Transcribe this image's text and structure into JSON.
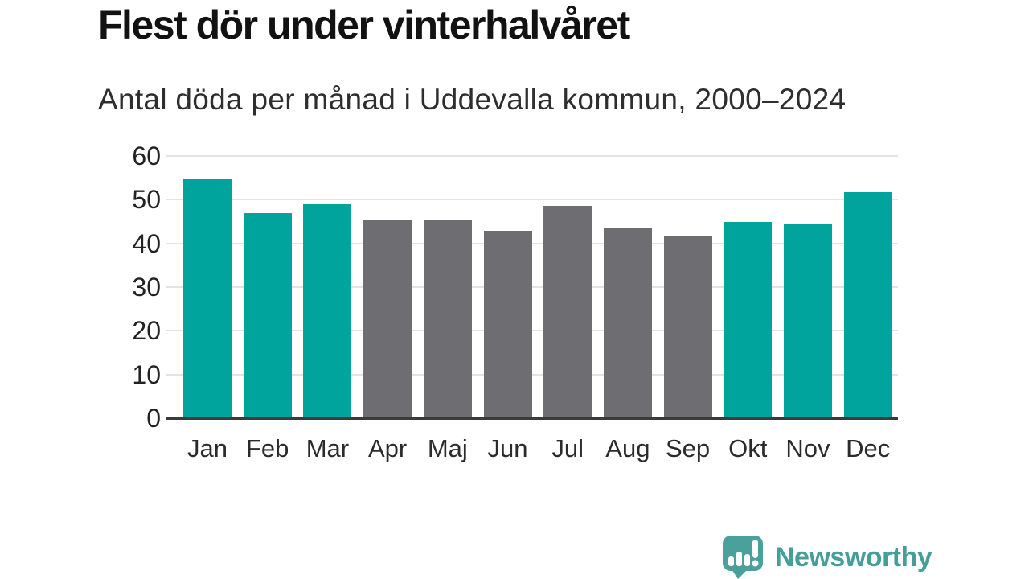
{
  "header": {
    "title": "Flest dör under vinterhalvåret",
    "subtitle": "Antal döda per månad i Uddevalla kommun, 2000–2024"
  },
  "chart_data": {
    "type": "bar",
    "title": "Flest dör under vinterhalvåret",
    "subtitle": "Antal döda per månad i Uddevalla kommun, 2000–2024",
    "categories": [
      "Jan",
      "Feb",
      "Mar",
      "Apr",
      "Maj",
      "Jun",
      "Jul",
      "Aug",
      "Sep",
      "Okt",
      "Nov",
      "Dec"
    ],
    "values": [
      54.7,
      46.9,
      48.9,
      45.5,
      45.3,
      42.9,
      48.6,
      43.6,
      41.6,
      44.9,
      44.3,
      51.8
    ],
    "bar_colors": [
      "#00a49c",
      "#00a49c",
      "#00a49c",
      "#6e6e72",
      "#6e6e72",
      "#6e6e72",
      "#6e6e72",
      "#6e6e72",
      "#6e6e72",
      "#00a49c",
      "#00a49c",
      "#00a49c"
    ],
    "highlight_color": "#00a49c",
    "default_color": "#6e6e72",
    "xlabel": "",
    "ylabel": "",
    "ylim": [
      0,
      60
    ],
    "yticks": [
      0,
      10,
      20,
      30,
      40,
      50,
      60
    ],
    "grid": true,
    "legend": false
  },
  "footer": {
    "brand": "Newsworthy",
    "brand_color": "#459e98",
    "logo_color": "#4aa09a",
    "logo_icon": "speech-bubble-bar-chart-icon"
  },
  "colors": {
    "grid": "#e3e3e3",
    "axis": "#3b3b3b",
    "tick_text": "#222222"
  }
}
